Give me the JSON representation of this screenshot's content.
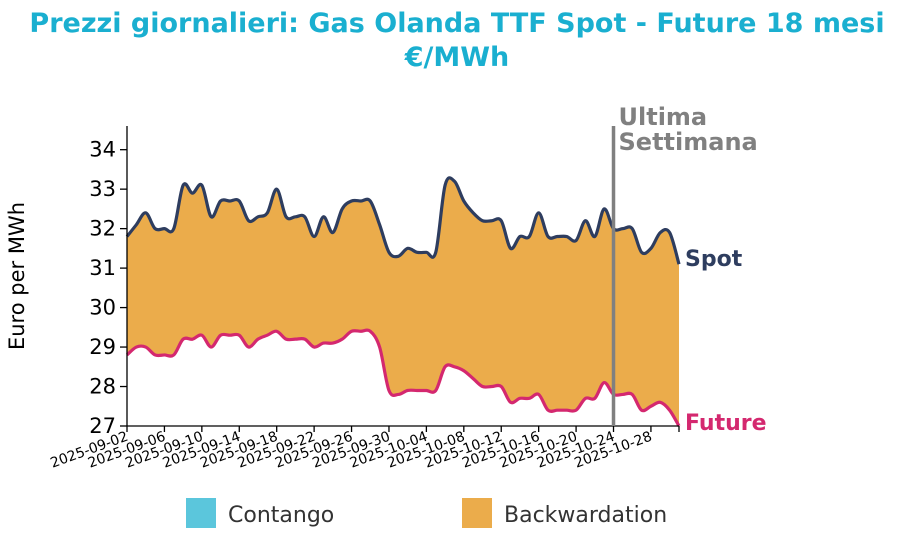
{
  "colors": {
    "title": "#1aafd0",
    "spot": "#2e3d5f",
    "future": "#d4286f",
    "backwardation": "#ebac4b",
    "contango": "#5bc6dc",
    "marker": "#808080"
  },
  "chart_data": {
    "type": "area",
    "title_line1": "Prezzi giornalieri: Gas Olanda TTF Spot - Future 18 mesi",
    "title_line2": "€/MWh",
    "ylabel": "Euro per MWh",
    "ylim": [
      27,
      34.6
    ],
    "yticks": [
      "27",
      "28",
      "29",
      "30",
      "31",
      "32",
      "33",
      "34"
    ],
    "xlim": [
      "2025-09-02",
      "2025-10-31"
    ],
    "xticks": [
      "2025-09-02",
      "2025-09-06",
      "2025-09-10",
      "2025-09-14",
      "2025-09-18",
      "2025-09-22",
      "2025-09-26",
      "2025-09-30",
      "2025-10-04",
      "2025-10-08",
      "2025-10-12",
      "2025-10-16",
      "2025-10-20",
      "2025-10-24",
      "2025-10-28"
    ],
    "marker_date": "2025-10-24",
    "marker_label_line1": "Ultima",
    "marker_label_line2": "Settimana",
    "legend": [
      {
        "label": "Contango",
        "color_key": "contango"
      },
      {
        "label": "Backwardation",
        "color_key": "backwardation"
      }
    ],
    "series": [
      {
        "name": "Spot",
        "points": [
          [
            "2025-09-02",
            31.8
          ],
          [
            "2025-09-03",
            32.1
          ],
          [
            "2025-09-04",
            32.4
          ],
          [
            "2025-09-05",
            32.0
          ],
          [
            "2025-09-06",
            32.0
          ],
          [
            "2025-09-07",
            32.0
          ],
          [
            "2025-09-08",
            33.1
          ],
          [
            "2025-09-09",
            32.9
          ],
          [
            "2025-09-10",
            33.1
          ],
          [
            "2025-09-11",
            32.3
          ],
          [
            "2025-09-12",
            32.7
          ],
          [
            "2025-09-13",
            32.7
          ],
          [
            "2025-09-14",
            32.7
          ],
          [
            "2025-09-15",
            32.2
          ],
          [
            "2025-09-16",
            32.3
          ],
          [
            "2025-09-17",
            32.4
          ],
          [
            "2025-09-18",
            33.0
          ],
          [
            "2025-09-19",
            32.3
          ],
          [
            "2025-09-20",
            32.3
          ],
          [
            "2025-09-21",
            32.3
          ],
          [
            "2025-09-22",
            31.8
          ],
          [
            "2025-09-23",
            32.3
          ],
          [
            "2025-09-24",
            31.9
          ],
          [
            "2025-09-25",
            32.5
          ],
          [
            "2025-09-26",
            32.7
          ],
          [
            "2025-09-27",
            32.7
          ],
          [
            "2025-09-28",
            32.7
          ],
          [
            "2025-09-29",
            32.1
          ],
          [
            "2025-09-30",
            31.4
          ],
          [
            "2025-10-01",
            31.3
          ],
          [
            "2025-10-02",
            31.5
          ],
          [
            "2025-10-03",
            31.4
          ],
          [
            "2025-10-04",
            31.4
          ],
          [
            "2025-10-05",
            31.4
          ],
          [
            "2025-10-06",
            33.1
          ],
          [
            "2025-10-07",
            33.2
          ],
          [
            "2025-10-08",
            32.7
          ],
          [
            "2025-10-09",
            32.4
          ],
          [
            "2025-10-10",
            32.2
          ],
          [
            "2025-10-11",
            32.2
          ],
          [
            "2025-10-12",
            32.2
          ],
          [
            "2025-10-13",
            31.5
          ],
          [
            "2025-10-14",
            31.8
          ],
          [
            "2025-10-15",
            31.8
          ],
          [
            "2025-10-16",
            32.4
          ],
          [
            "2025-10-17",
            31.8
          ],
          [
            "2025-10-18",
            31.8
          ],
          [
            "2025-10-19",
            31.8
          ],
          [
            "2025-10-20",
            31.7
          ],
          [
            "2025-10-21",
            32.2
          ],
          [
            "2025-10-22",
            31.8
          ],
          [
            "2025-10-23",
            32.5
          ],
          [
            "2025-10-24",
            32.0
          ],
          [
            "2025-10-25",
            32.0
          ],
          [
            "2025-10-26",
            32.0
          ],
          [
            "2025-10-27",
            31.4
          ],
          [
            "2025-10-28",
            31.5
          ],
          [
            "2025-10-29",
            31.9
          ],
          [
            "2025-10-30",
            31.9
          ],
          [
            "2025-10-31",
            31.1
          ]
        ]
      },
      {
        "name": "Future",
        "points": [
          [
            "2025-09-02",
            28.8
          ],
          [
            "2025-09-03",
            29.0
          ],
          [
            "2025-09-04",
            29.0
          ],
          [
            "2025-09-05",
            28.8
          ],
          [
            "2025-09-06",
            28.8
          ],
          [
            "2025-09-07",
            28.8
          ],
          [
            "2025-09-08",
            29.2
          ],
          [
            "2025-09-09",
            29.2
          ],
          [
            "2025-09-10",
            29.3
          ],
          [
            "2025-09-11",
            29.0
          ],
          [
            "2025-09-12",
            29.3
          ],
          [
            "2025-09-13",
            29.3
          ],
          [
            "2025-09-14",
            29.3
          ],
          [
            "2025-09-15",
            29.0
          ],
          [
            "2025-09-16",
            29.2
          ],
          [
            "2025-09-17",
            29.3
          ],
          [
            "2025-09-18",
            29.4
          ],
          [
            "2025-09-19",
            29.2
          ],
          [
            "2025-09-20",
            29.2
          ],
          [
            "2025-09-21",
            29.2
          ],
          [
            "2025-09-22",
            29.0
          ],
          [
            "2025-09-23",
            29.1
          ],
          [
            "2025-09-24",
            29.1
          ],
          [
            "2025-09-25",
            29.2
          ],
          [
            "2025-09-26",
            29.4
          ],
          [
            "2025-09-27",
            29.4
          ],
          [
            "2025-09-28",
            29.4
          ],
          [
            "2025-09-29",
            29.0
          ],
          [
            "2025-09-30",
            27.9
          ],
          [
            "2025-10-01",
            27.8
          ],
          [
            "2025-10-02",
            27.9
          ],
          [
            "2025-10-03",
            27.9
          ],
          [
            "2025-10-04",
            27.9
          ],
          [
            "2025-10-05",
            27.9
          ],
          [
            "2025-10-06",
            28.5
          ],
          [
            "2025-10-07",
            28.5
          ],
          [
            "2025-10-08",
            28.4
          ],
          [
            "2025-10-09",
            28.2
          ],
          [
            "2025-10-10",
            28.0
          ],
          [
            "2025-10-11",
            28.0
          ],
          [
            "2025-10-12",
            28.0
          ],
          [
            "2025-10-13",
            27.6
          ],
          [
            "2025-10-14",
            27.7
          ],
          [
            "2025-10-15",
            27.7
          ],
          [
            "2025-10-16",
            27.8
          ],
          [
            "2025-10-17",
            27.4
          ],
          [
            "2025-10-18",
            27.4
          ],
          [
            "2025-10-19",
            27.4
          ],
          [
            "2025-10-20",
            27.4
          ],
          [
            "2025-10-21",
            27.7
          ],
          [
            "2025-10-22",
            27.7
          ],
          [
            "2025-10-23",
            28.1
          ],
          [
            "2025-10-24",
            27.8
          ],
          [
            "2025-10-25",
            27.8
          ],
          [
            "2025-10-26",
            27.8
          ],
          [
            "2025-10-27",
            27.4
          ],
          [
            "2025-10-28",
            27.5
          ],
          [
            "2025-10-29",
            27.6
          ],
          [
            "2025-10-30",
            27.4
          ],
          [
            "2025-10-31",
            27.0
          ]
        ]
      }
    ]
  }
}
